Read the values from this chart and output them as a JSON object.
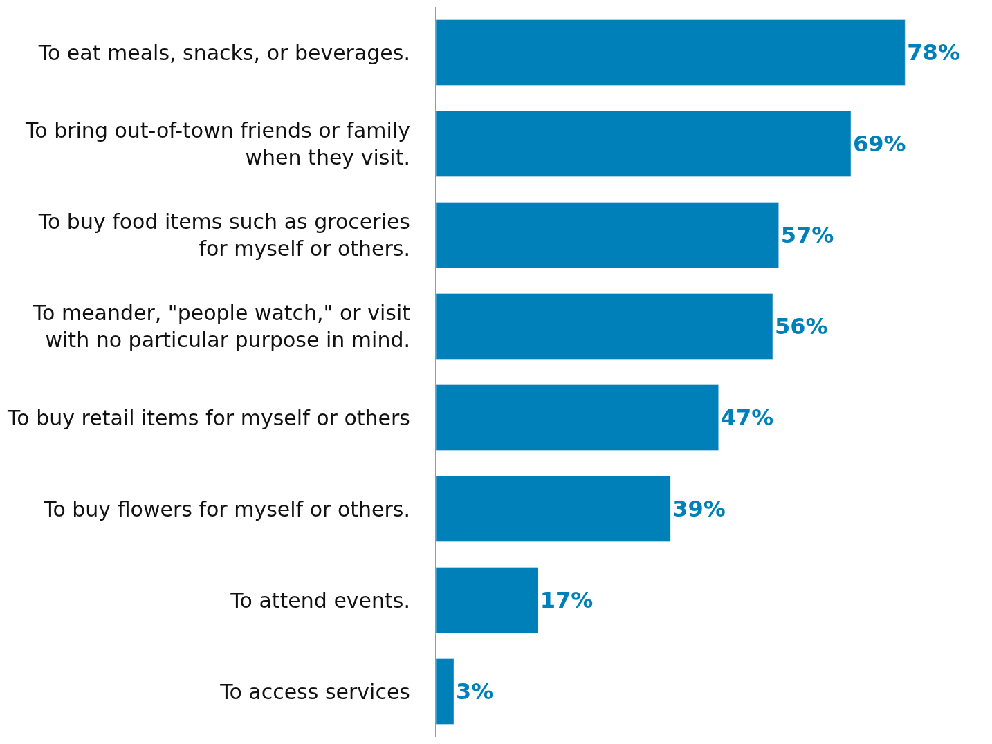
{
  "chart_data": {
    "type": "bar",
    "orientation": "horizontal",
    "categories": [
      "To eat meals, snacks, or beverages.",
      "To bring out-of-town friends or family\nwhen they visit.",
      "To buy food items such as groceries\nfor myself or others.",
      "To meander, \"people watch,\" or visit\nwith no particular purpose in mind.",
      "To buy retail items for myself or others",
      "To buy flowers for myself or others.",
      "To attend events.",
      "To access services"
    ],
    "values": [
      78,
      69,
      57,
      56,
      47,
      39,
      17,
      3
    ],
    "value_labels": [
      "78%",
      "69%",
      "57%",
      "56%",
      "47%",
      "39%",
      "17%",
      "3%"
    ],
    "color": "#0080b8",
    "legend": false
  }
}
